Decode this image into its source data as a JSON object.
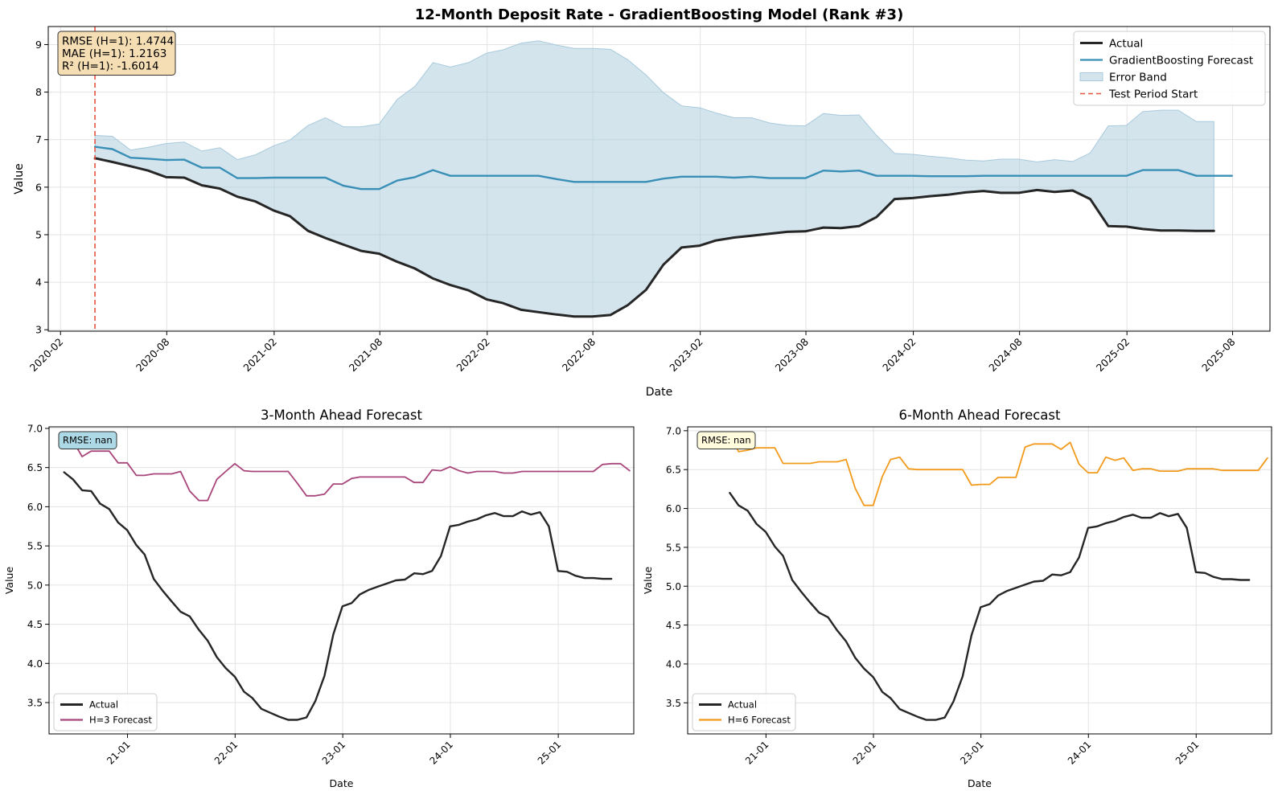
{
  "chart_data": [
    {
      "type": "line",
      "title": "12-Month Deposit Rate - GradientBoosting Model (Rank #3)",
      "xlabel": "Date",
      "ylabel": "Value",
      "xlim": [
        "2020-01-11",
        "2025-10-04"
      ],
      "ylim": [
        2.97,
        9.38
      ],
      "x_ticks": [
        "2020-02",
        "2020-08",
        "2021-02",
        "2021-08",
        "2022-02",
        "2022-08",
        "2023-02",
        "2023-08",
        "2024-02",
        "2024-08",
        "2025-02",
        "2025-08"
      ],
      "y_ticks": [
        "3",
        "4",
        "5",
        "6",
        "7",
        "8",
        "9"
      ],
      "grid": true,
      "legend_position": "upper right",
      "legend": [
        "Actual",
        "GradientBoosting Forecast",
        "Error Band",
        "Test Period Start"
      ],
      "metrics_box": [
        "RMSE (H=1): 1.4744",
        "MAE (H=1): 1.2163",
        "R² (H=1): -1.6014"
      ],
      "test_period_start": "2020-03-31",
      "colors": {
        "actual": "#262626",
        "forecast": "#3a8fb7",
        "band": "#a8cadc",
        "test_start": "#e8523f",
        "box": "#f5deb3"
      },
      "x": [
        "2020-03-31",
        "2020-04-30",
        "2020-05-31",
        "2020-06-30",
        "2020-07-31",
        "2020-08-31",
        "2020-09-30",
        "2020-10-31",
        "2020-11-30",
        "2020-12-31",
        "2021-01-31",
        "2021-02-28",
        "2021-03-31",
        "2021-04-30",
        "2021-05-31",
        "2021-06-30",
        "2021-07-31",
        "2021-08-31",
        "2021-09-30",
        "2021-10-31",
        "2021-11-30",
        "2021-12-31",
        "2022-01-31",
        "2022-02-28",
        "2022-03-31",
        "2022-04-30",
        "2022-05-31",
        "2022-06-30",
        "2022-07-31",
        "2022-08-31",
        "2022-09-30",
        "2022-10-31",
        "2022-11-30",
        "2022-12-31",
        "2023-01-31",
        "2023-02-28",
        "2023-03-31",
        "2023-04-30",
        "2023-05-31",
        "2023-06-30",
        "2023-07-31",
        "2023-08-31",
        "2023-09-30",
        "2023-10-31",
        "2023-11-30",
        "2023-12-31",
        "2024-01-31",
        "2024-02-29",
        "2024-03-31",
        "2024-04-30",
        "2024-05-31",
        "2024-06-30",
        "2024-07-31",
        "2024-08-31",
        "2024-09-30",
        "2024-10-31",
        "2024-11-30",
        "2024-12-31",
        "2025-01-31",
        "2025-02-28",
        "2025-03-31",
        "2025-04-30",
        "2025-05-31",
        "2025-06-30",
        "2025-07-31"
      ],
      "series": [
        {
          "name": "Actual",
          "values": [
            6.61,
            6.53,
            6.44,
            6.35,
            6.21,
            6.2,
            6.04,
            5.97,
            5.8,
            5.7,
            5.51,
            5.39,
            5.08,
            4.93,
            4.79,
            4.66,
            4.6,
            4.43,
            4.29,
            4.08,
            3.94,
            3.83,
            3.64,
            3.56,
            3.42,
            3.37,
            3.32,
            3.28,
            3.28,
            3.31,
            3.52,
            3.84,
            4.37,
            4.73,
            4.77,
            4.88,
            4.94,
            4.98,
            5.02,
            5.06,
            5.07,
            5.15,
            5.14,
            5.18,
            5.37,
            5.75,
            5.77,
            5.81,
            5.84,
            5.89,
            5.92,
            5.88,
            5.88,
            5.94,
            5.9,
            5.93,
            5.75,
            5.18,
            5.17,
            5.12,
            5.09,
            5.09,
            5.08,
            5.08,
            null
          ]
        },
        {
          "name": "GradientBoosting Forecast",
          "values": [
            6.85,
            6.8,
            6.62,
            6.6,
            6.57,
            6.58,
            6.41,
            6.41,
            6.19,
            6.19,
            6.2,
            6.2,
            6.2,
            6.2,
            6.03,
            5.96,
            5.96,
            6.14,
            6.21,
            6.36,
            6.24,
            6.24,
            6.24,
            6.24,
            6.24,
            6.24,
            6.17,
            6.11,
            6.11,
            6.11,
            6.11,
            6.11,
            6.18,
            6.22,
            6.22,
            6.22,
            6.2,
            6.22,
            6.19,
            6.19,
            6.19,
            6.35,
            6.33,
            6.35,
            6.24,
            6.24,
            6.24,
            6.23,
            6.23,
            6.23,
            6.24,
            6.24,
            6.24,
            6.24,
            6.24,
            6.24,
            6.24,
            6.24,
            6.24,
            6.36,
            6.36,
            6.36,
            6.24,
            6.24,
            6.24
          ]
        },
        {
          "name": "Error Band",
          "upper": [
            7.09,
            7.07,
            6.78,
            6.84,
            6.92,
            6.95,
            6.76,
            6.83,
            6.58,
            6.68,
            6.87,
            6.99,
            7.3,
            7.46,
            7.27,
            7.27,
            7.33,
            7.85,
            8.12,
            8.62,
            8.53,
            8.62,
            8.82,
            8.89,
            9.03,
            9.08,
            8.99,
            8.92,
            8.92,
            8.9,
            8.68,
            8.36,
            7.99,
            7.71,
            7.67,
            7.56,
            7.46,
            7.46,
            7.35,
            7.3,
            7.29,
            7.55,
            7.51,
            7.52,
            7.09,
            6.71,
            6.69,
            6.65,
            6.62,
            6.57,
            6.55,
            6.59,
            6.59,
            6.53,
            6.58,
            6.54,
            6.72,
            7.29,
            7.3,
            7.59,
            7.62,
            7.62,
            7.38,
            7.38,
            null
          ],
          "lower": [
            6.61,
            6.53,
            6.44,
            6.35,
            6.21,
            6.2,
            6.04,
            5.97,
            5.8,
            5.7,
            5.51,
            5.39,
            5.08,
            4.93,
            4.79,
            4.66,
            4.6,
            4.43,
            4.29,
            4.08,
            3.94,
            3.83,
            3.64,
            3.56,
            3.42,
            3.37,
            3.32,
            3.28,
            3.28,
            3.31,
            3.52,
            3.84,
            4.37,
            4.73,
            4.77,
            4.88,
            4.94,
            4.98,
            5.02,
            5.06,
            5.07,
            5.15,
            5.14,
            5.18,
            5.37,
            5.75,
            5.77,
            5.81,
            5.84,
            5.89,
            5.92,
            5.88,
            5.88,
            5.94,
            5.9,
            5.93,
            5.75,
            5.18,
            5.17,
            5.12,
            5.09,
            5.09,
            5.08,
            5.08,
            null
          ]
        }
      ]
    },
    {
      "type": "line",
      "title": "3-Month Ahead Forecast",
      "xlabel": "Date",
      "ylabel": "Value",
      "xlim": [
        "2020-04-10",
        "2025-09-14"
      ],
      "ylim": [
        3.1,
        7.02
      ],
      "x_ticks": [
        "21-01",
        "22-01",
        "23-01",
        "24-01",
        "25-01"
      ],
      "y_ticks": [
        "3.5",
        "4.0",
        "4.5",
        "5.0",
        "5.5",
        "6.0",
        "6.5",
        "7.0"
      ],
      "grid": true,
      "legend_position": "lower left",
      "legend": [
        "Actual",
        "H=3 Forecast"
      ],
      "metrics_box": [
        "RMSE: nan"
      ],
      "colors": {
        "actual": "#262626",
        "forecast": "#a8457a",
        "box": "#add8e6"
      },
      "x": [
        "2020-05-31",
        "2020-06-30",
        "2020-07-31",
        "2020-08-31",
        "2020-09-30",
        "2020-10-31",
        "2020-11-30",
        "2020-12-31",
        "2021-01-31",
        "2021-02-28",
        "2021-03-31",
        "2021-04-30",
        "2021-05-31",
        "2021-06-30",
        "2021-07-31",
        "2021-08-31",
        "2021-09-30",
        "2021-10-31",
        "2021-11-30",
        "2021-12-31",
        "2022-01-31",
        "2022-02-28",
        "2022-03-31",
        "2022-04-30",
        "2022-05-31",
        "2022-06-30",
        "2022-07-31",
        "2022-08-31",
        "2022-09-30",
        "2022-10-31",
        "2022-11-30",
        "2022-12-31",
        "2023-01-31",
        "2023-02-28",
        "2023-03-31",
        "2023-04-30",
        "2023-05-31",
        "2023-06-30",
        "2023-07-31",
        "2023-08-31",
        "2023-09-30",
        "2023-10-31",
        "2023-11-30",
        "2023-12-31",
        "2024-01-31",
        "2024-02-29",
        "2024-03-31",
        "2024-04-30",
        "2024-05-31",
        "2024-06-30",
        "2024-07-31",
        "2024-08-31",
        "2024-09-30",
        "2024-10-31",
        "2024-11-30",
        "2024-12-31",
        "2025-01-31",
        "2025-02-28",
        "2025-03-31",
        "2025-04-30",
        "2025-05-31",
        "2025-06-30",
        "2025-07-31",
        "2025-08-31"
      ],
      "series": [
        {
          "name": "Actual",
          "values": [
            6.44,
            6.35,
            6.21,
            6.2,
            6.04,
            5.97,
            5.8,
            5.7,
            5.51,
            5.39,
            5.08,
            4.93,
            4.79,
            4.66,
            4.6,
            4.43,
            4.29,
            4.08,
            3.94,
            3.83,
            3.64,
            3.56,
            3.42,
            3.37,
            3.32,
            3.28,
            3.28,
            3.31,
            3.52,
            3.84,
            4.37,
            4.73,
            4.77,
            4.88,
            4.94,
            4.98,
            5.02,
            5.06,
            5.07,
            5.15,
            5.14,
            5.18,
            5.37,
            5.75,
            5.77,
            5.81,
            5.84,
            5.89,
            5.92,
            5.88,
            5.88,
            5.94,
            5.9,
            5.93,
            5.75,
            5.18,
            5.17,
            5.12,
            5.09,
            5.09,
            5.08,
            5.08,
            null,
            null
          ]
        },
        {
          "name": "H=3 Forecast",
          "values": [
            6.95,
            6.84,
            6.64,
            6.71,
            6.71,
            6.71,
            6.56,
            6.56,
            6.4,
            6.4,
            6.42,
            6.42,
            6.42,
            6.45,
            6.2,
            6.08,
            6.08,
            6.35,
            6.45,
            6.55,
            6.46,
            6.45,
            6.45,
            6.45,
            6.45,
            6.45,
            6.3,
            6.14,
            6.14,
            6.16,
            6.29,
            6.29,
            6.36,
            6.38,
            6.38,
            6.38,
            6.38,
            6.38,
            6.38,
            6.31,
            6.31,
            6.47,
            6.46,
            6.51,
            6.46,
            6.43,
            6.45,
            6.45,
            6.45,
            6.43,
            6.43,
            6.45,
            6.45,
            6.45,
            6.45,
            6.45,
            6.45,
            6.45,
            6.45,
            6.45,
            6.54,
            6.55,
            6.55,
            6.46
          ]
        }
      ]
    },
    {
      "type": "line",
      "title": "6-Month Ahead Forecast",
      "xlabel": "Date",
      "ylabel": "Value",
      "xlim": [
        "2020-04-10",
        "2025-09-14"
      ],
      "ylim": [
        3.1,
        7.05
      ],
      "x_ticks": [
        "21-01",
        "22-01",
        "23-01",
        "24-01",
        "25-01"
      ],
      "y_ticks": [
        "3.5",
        "4.0",
        "4.5",
        "5.0",
        "5.5",
        "6.0",
        "6.5",
        "7.0"
      ],
      "grid": true,
      "legend_position": "lower left",
      "legend": [
        "Actual",
        "H=6 Forecast"
      ],
      "metrics_box": [
        "RMSE: nan"
      ],
      "colors": {
        "actual": "#262626",
        "forecast": "#f29a1c",
        "box": "#fffbdc"
      },
      "x": [
        "2020-08-31",
        "2020-09-30",
        "2020-10-31",
        "2020-11-30",
        "2020-12-31",
        "2021-01-31",
        "2021-02-28",
        "2021-03-31",
        "2021-04-30",
        "2021-05-31",
        "2021-06-30",
        "2021-07-31",
        "2021-08-31",
        "2021-09-30",
        "2021-10-31",
        "2021-11-30",
        "2021-12-31",
        "2022-01-31",
        "2022-02-28",
        "2022-03-31",
        "2022-04-30",
        "2022-05-31",
        "2022-06-30",
        "2022-07-31",
        "2022-08-31",
        "2022-09-30",
        "2022-10-31",
        "2022-11-30",
        "2022-12-31",
        "2023-01-31",
        "2023-02-28",
        "2023-03-31",
        "2023-04-30",
        "2023-05-31",
        "2023-06-30",
        "2023-07-31",
        "2023-08-31",
        "2023-09-30",
        "2023-10-31",
        "2023-11-30",
        "2023-12-31",
        "2024-01-31",
        "2024-02-29",
        "2024-03-31",
        "2024-04-30",
        "2024-05-31",
        "2024-06-30",
        "2024-07-31",
        "2024-08-31",
        "2024-09-30",
        "2024-10-31",
        "2024-11-30",
        "2024-12-31",
        "2025-01-31",
        "2025-02-28",
        "2025-03-31",
        "2025-04-30",
        "2025-05-31",
        "2025-06-30",
        "2025-07-31",
        "2025-08-31"
      ],
      "series": [
        {
          "name": "Actual",
          "values": [
            6.2,
            6.04,
            5.97,
            5.8,
            5.7,
            5.51,
            5.39,
            5.08,
            4.93,
            4.79,
            4.66,
            4.6,
            4.43,
            4.29,
            4.08,
            3.94,
            3.83,
            3.64,
            3.56,
            3.42,
            3.37,
            3.32,
            3.28,
            3.28,
            3.31,
            3.52,
            3.84,
            4.37,
            4.73,
            4.77,
            4.88,
            4.94,
            4.98,
            5.02,
            5.06,
            5.07,
            5.15,
            5.14,
            5.18,
            5.37,
            5.75,
            5.77,
            5.81,
            5.84,
            5.89,
            5.92,
            5.88,
            5.88,
            5.94,
            5.9,
            5.93,
            5.75,
            5.18,
            5.17,
            5.12,
            5.09,
            5.09,
            5.08,
            5.08,
            null,
            null
          ]
        },
        {
          "name": "H=6 Forecast",
          "values": [
            6.96,
            6.73,
            6.75,
            6.78,
            6.78,
            6.78,
            6.58,
            6.58,
            6.58,
            6.58,
            6.6,
            6.6,
            6.6,
            6.63,
            6.26,
            6.04,
            6.04,
            6.41,
            6.63,
            6.66,
            6.51,
            6.5,
            6.5,
            6.5,
            6.5,
            6.5,
            6.5,
            6.3,
            6.31,
            6.31,
            6.4,
            6.4,
            6.4,
            6.79,
            6.83,
            6.83,
            6.83,
            6.76,
            6.85,
            6.57,
            6.46,
            6.46,
            6.66,
            6.62,
            6.65,
            6.49,
            6.51,
            6.51,
            6.48,
            6.48,
            6.48,
            6.51,
            6.51,
            6.51,
            6.51,
            6.49,
            6.49,
            6.49,
            6.49,
            6.49,
            6.65
          ]
        }
      ]
    }
  ]
}
